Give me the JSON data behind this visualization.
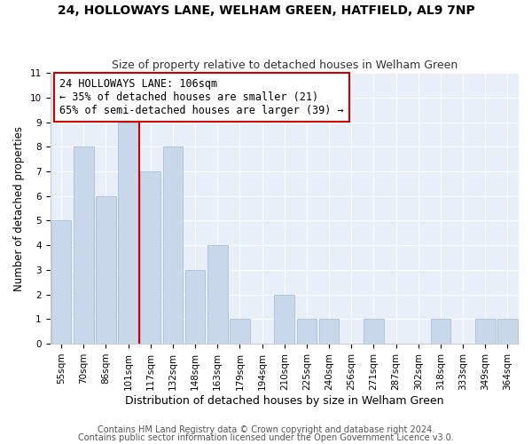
{
  "title": "24, HOLLOWAYS LANE, WELHAM GREEN, HATFIELD, AL9 7NP",
  "subtitle": "Size of property relative to detached houses in Welham Green",
  "xlabel": "Distribution of detached houses by size in Welham Green",
  "ylabel": "Number of detached properties",
  "categories": [
    "55sqm",
    "70sqm",
    "86sqm",
    "101sqm",
    "117sqm",
    "132sqm",
    "148sqm",
    "163sqm",
    "179sqm",
    "194sqm",
    "210sqm",
    "225sqm",
    "240sqm",
    "256sqm",
    "271sqm",
    "287sqm",
    "302sqm",
    "318sqm",
    "333sqm",
    "349sqm",
    "364sqm"
  ],
  "values": [
    5,
    8,
    6,
    9,
    7,
    8,
    3,
    4,
    1,
    0,
    2,
    1,
    1,
    0,
    1,
    0,
    0,
    1,
    0,
    1,
    1
  ],
  "bar_color": "#c8d8ea",
  "bar_edge_color": "#a8c0d8",
  "vline_x": 3.5,
  "vline_color": "#cc0000",
  "annotation_line1": "24 HOLLOWAYS LANE: 106sqm",
  "annotation_line2": "← 35% of detached houses are smaller (21)",
  "annotation_line3": "65% of semi-detached houses are larger (39) →",
  "annotation_box_color": "white",
  "annotation_box_edge_color": "#cc0000",
  "ylim": [
    0,
    11
  ],
  "yticks": [
    0,
    1,
    2,
    3,
    4,
    5,
    6,
    7,
    8,
    9,
    10,
    11
  ],
  "footnote1": "Contains HM Land Registry data © Crown copyright and database right 2024.",
  "footnote2": "Contains public sector information licensed under the Open Government Licence v3.0.",
  "title_fontsize": 10,
  "subtitle_fontsize": 9,
  "xlabel_fontsize": 9,
  "ylabel_fontsize": 8.5,
  "tick_fontsize": 7.5,
  "annotation_fontsize": 8.5,
  "footnote_fontsize": 7,
  "background_color": "#ffffff",
  "plot_background_color": "#e8eff8",
  "grid_color": "#ffffff"
}
